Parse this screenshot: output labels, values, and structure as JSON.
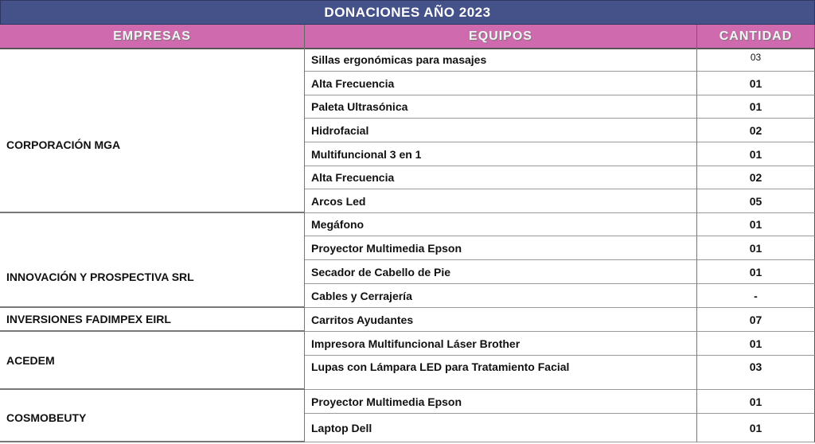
{
  "title": "DONACIONES  AÑO 2023",
  "headers": {
    "empresas": "EMPRESAS",
    "equipos": "EQUIPOS",
    "cantidad": "CANTIDAD"
  },
  "colors": {
    "title_bg": "#45528a",
    "header_bg": "#d06aae"
  },
  "groups": [
    {
      "empresa": "CORPORACIÓN MGA",
      "items": [
        {
          "equipo": "Sillas ergonómicas para masajes",
          "cantidad": "03"
        },
        {
          "equipo": "Alta Frecuencia",
          "cantidad": "01"
        },
        {
          "equipo": "Paleta Ultrasónica",
          "cantidad": "01"
        },
        {
          "equipo": "Hidrofacial",
          "cantidad": "02"
        },
        {
          "equipo": "Multifuncional  3 en 1",
          "cantidad": "01"
        },
        {
          "equipo": "Alta Frecuencia",
          "cantidad": "02"
        },
        {
          "equipo": "Arcos Led",
          "cantidad": "05"
        }
      ]
    },
    {
      "empresa": "INNOVACIÓN Y PROSPECTIVA SRL",
      "items": [
        {
          "equipo": "Megáfono",
          "cantidad": "01"
        },
        {
          "equipo": "Proyector Multimedia  Epson",
          "cantidad": "01"
        },
        {
          "equipo": "Secador de Cabello de Pie",
          "cantidad": "01"
        },
        {
          "equipo": "Cables y Cerrajería",
          "cantidad": "-"
        }
      ]
    },
    {
      "empresa": "INVERSIONES FADIMPEX EIRL",
      "items": [
        {
          "equipo": "Carritos Ayudantes",
          "cantidad": "07"
        }
      ]
    },
    {
      "empresa": "ACEDEM",
      "items": [
        {
          "equipo": "Impresora Multifuncional  Láser Brother",
          "cantidad": "01"
        },
        {
          "equipo": "Lupas con Lámpara LED para Tratamiento Facial",
          "cantidad": "03"
        }
      ]
    },
    {
      "empresa": "COSMOBEUTY",
      "items": [
        {
          "equipo": "Proyector Multimedia  Epson",
          "cantidad": "01"
        },
        {
          "equipo": "Laptop Dell",
          "cantidad": "01"
        }
      ]
    }
  ]
}
